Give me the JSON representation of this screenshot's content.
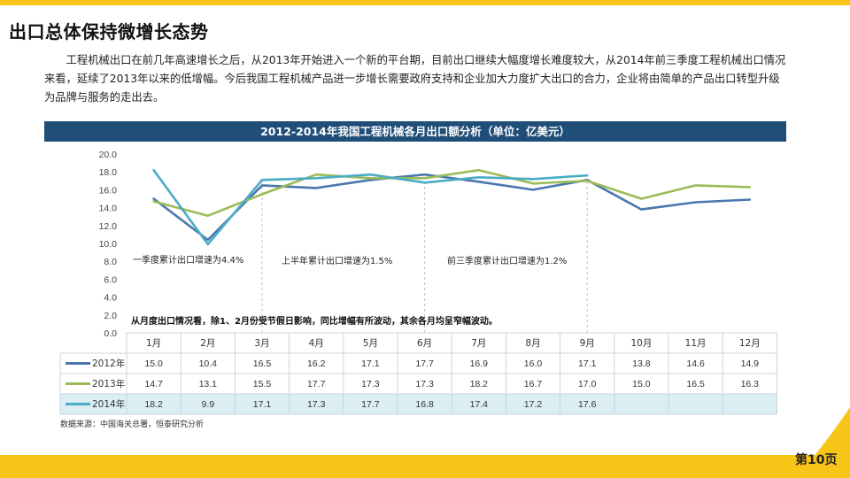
{
  "page": {
    "title": "出口总体保持微增长态势",
    "intro": "工程机械出口在前几年高速增长之后，从2013年开始进入一个新的平台期，目前出口继续大幅度增长难度较大，从2014年前三季度工程机械出口情况来看，延续了2013年以来的低增幅。今后我国工程机械产品进一步增长需要政府支持和企业加大力度扩大出口的合力，企业将由简单的产品出口转型升级为品牌与服务的走出去。",
    "source": "数据来源：中国海关总署，恒泰研究分析",
    "page_number": "第10页"
  },
  "chart_data": {
    "type": "line",
    "title": "2012-2014年我国工程机械各月出口额分析（单位：亿美元）",
    "categories": [
      "1月",
      "2月",
      "3月",
      "4月",
      "5月",
      "6月",
      "7月",
      "8月",
      "9月",
      "10月",
      "11月",
      "12月"
    ],
    "ylim": [
      0,
      20
    ],
    "yticks": [
      "0.0",
      "2.0",
      "4.0",
      "6.0",
      "8.0",
      "10.0",
      "12.0",
      "14.0",
      "16.0",
      "18.0",
      "20.0"
    ],
    "grid": false,
    "legend": "table-left",
    "series": [
      {
        "name": "2012年",
        "color": "#4a77ac",
        "values": [
          15.0,
          10.4,
          16.5,
          16.2,
          17.1,
          17.7,
          16.9,
          16.0,
          17.1,
          13.8,
          14.6,
          14.9
        ],
        "labels": [
          "15.0",
          "10.4",
          "16.5",
          "16.2",
          "17.1",
          "17.7",
          "16.9",
          "16.0",
          "17.1",
          "13.8",
          "14.6",
          "14.9"
        ]
      },
      {
        "name": "2013年",
        "color": "#9bbb59",
        "values": [
          14.7,
          13.1,
          15.5,
          17.7,
          17.3,
          17.3,
          18.2,
          16.7,
          17.0,
          15.0,
          16.5,
          16.3
        ],
        "labels": [
          "14.7",
          "13.1",
          "15.5",
          "17.7",
          "17.3",
          "17.3",
          "18.2",
          "16.7",
          "17.0",
          "15.0",
          "16.5",
          "16.3"
        ]
      },
      {
        "name": "2014年",
        "color": "#4bacc6",
        "values": [
          18.2,
          9.9,
          17.1,
          17.3,
          17.7,
          16.8,
          17.4,
          17.2,
          17.6,
          null,
          null,
          null
        ],
        "labels": [
          "18.2",
          "9.9",
          "17.1",
          "17.3",
          "17.7",
          "16.8",
          "17.4",
          "17.2",
          "17.6",
          "",
          "",
          ""
        ]
      }
    ],
    "annotations": [
      {
        "text": "一季度累计出口增速为4.4%"
      },
      {
        "text": "上半年累计出口增速为1.5%"
      },
      {
        "text": "前三季度累计出口增速为1.2%"
      },
      {
        "text": "从月度出口情况看，除1、2月份受节假日影响，同比增幅有所波动，其余各月均呈窄幅波动。"
      }
    ]
  }
}
